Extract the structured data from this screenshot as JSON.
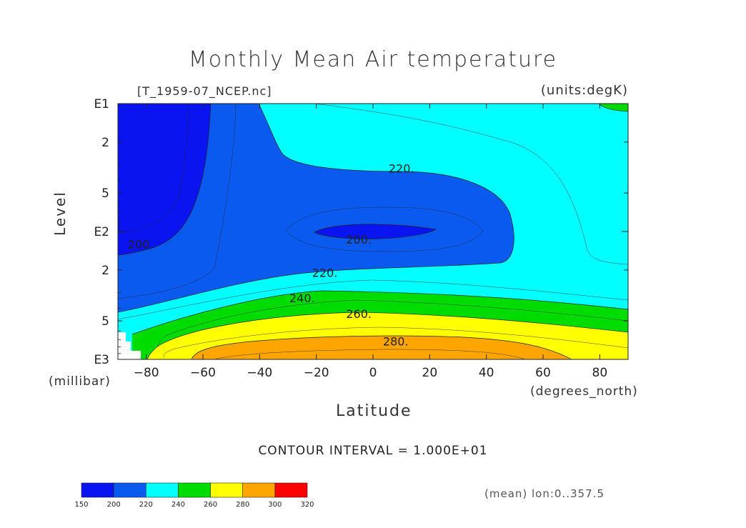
{
  "chart_data": {
    "type": "heatmap",
    "title": "Monthly Mean Air temperature",
    "dataset": "[T_1959-07_NCEP.nc]",
    "units": "(units:degK)",
    "xlabel": "Latitude",
    "x_units": "(degrees_north)",
    "ylabel": "Level",
    "y_units": "(millibar)",
    "xlim": [
      -90,
      90
    ],
    "ylim_log10": [
      1,
      3
    ],
    "x_ticks": [
      -80,
      -60,
      -40,
      -20,
      0,
      20,
      40,
      60,
      80
    ],
    "y_ticks": [
      {
        "level": 10,
        "label": "E1"
      },
      {
        "level": 20,
        "label": "2"
      },
      {
        "level": 50,
        "label": "5"
      },
      {
        "level": 100,
        "label": "E2"
      },
      {
        "level": 200,
        "label": "2"
      },
      {
        "level": 500,
        "label": "5"
      },
      {
        "level": 1000,
        "label": "E3"
      }
    ],
    "contour_interval_text": "CONTOUR INTERVAL = 1.000E+01",
    "contour_labels": [
      {
        "text": "220.",
        "lat": 10,
        "level": 32
      },
      {
        "text": "200.",
        "lat": -5,
        "level": 115
      },
      {
        "text": "200.",
        "lat": -82,
        "level": 125
      },
      {
        "text": "220.",
        "lat": -17,
        "level": 210
      },
      {
        "text": "240.",
        "lat": -25,
        "level": 330
      },
      {
        "text": "260.",
        "lat": -5,
        "level": 440
      },
      {
        "text": "280.",
        "lat": 8,
        "level": 720
      }
    ],
    "colorbar": {
      "levels": [
        150,
        200,
        220,
        240,
        260,
        280,
        300,
        320
      ],
      "colors": [
        "#0a14f0",
        "#0a5af0",
        "#00ffff",
        "#00dc00",
        "#ffff00",
        "#ffa500",
        "#ff0000"
      ]
    },
    "annotation": "(mean) lon:0..357.5"
  }
}
